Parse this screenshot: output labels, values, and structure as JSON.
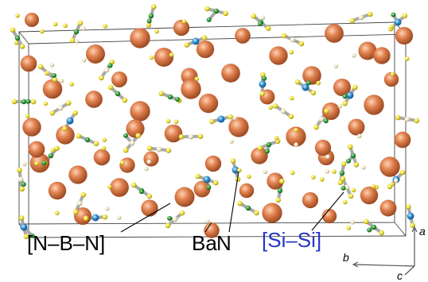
{
  "labels": {
    "nbn": "[N–B–N]",
    "ba": "Ba",
    "n": "N",
    "sisi": "[Si–Si]"
  },
  "axes": {
    "a": "a",
    "b": "b",
    "c": "c"
  },
  "colors": {
    "ba": "#e0814f",
    "ba_dark": "#a8532a",
    "n": "#2f8fd0",
    "si": "#2e9c3a",
    "b": "#f0e23a",
    "h": "#efe6c6",
    "bond": "#a9a9a9",
    "cell": "#444444",
    "sisi_label": "#2634c8"
  }
}
